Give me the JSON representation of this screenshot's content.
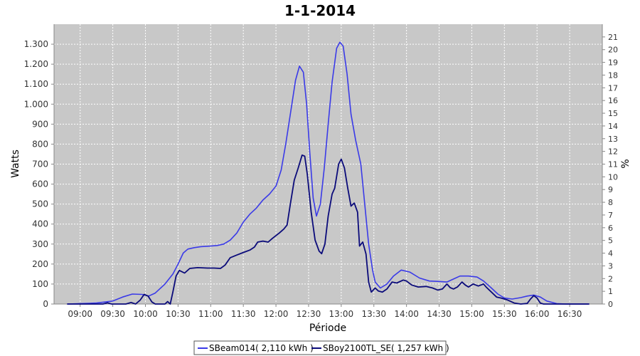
{
  "chart_data": {
    "type": "line",
    "title": "1-1-2014",
    "xlabel": "Période",
    "ylabel": "Watts",
    "y2label": "%",
    "xlim": [
      8.6,
      17.0
    ],
    "ylim": [
      0,
      1400
    ],
    "y2lim": [
      0,
      22
    ],
    "x_ticks": [
      {
        "label": "09:00",
        "value": 9.0
      },
      {
        "label": "09:30",
        "value": 9.5
      },
      {
        "label": "10:00",
        "value": 10.0
      },
      {
        "label": "10:30",
        "value": 10.5
      },
      {
        "label": "11:00",
        "value": 11.0
      },
      {
        "label": "11:30",
        "value": 11.5
      },
      {
        "label": "12:00",
        "value": 12.0
      },
      {
        "label": "12:30",
        "value": 12.5
      },
      {
        "label": "13:00",
        "value": 13.0
      },
      {
        "label": "13:30",
        "value": 13.5
      },
      {
        "label": "14:00",
        "value": 14.0
      },
      {
        "label": "14:30",
        "value": 14.5
      },
      {
        "label": "15:00",
        "value": 15.0
      },
      {
        "label": "15:30",
        "value": 15.5
      },
      {
        "label": "16:00",
        "value": 16.0
      },
      {
        "label": "16:30",
        "value": 16.5
      }
    ],
    "y_ticks": [
      {
        "label": "0",
        "value": 0
      },
      {
        "label": "100",
        "value": 100
      },
      {
        "label": "200",
        "value": 200
      },
      {
        "label": "300",
        "value": 300
      },
      {
        "label": "400",
        "value": 400
      },
      {
        "label": "500",
        "value": 500
      },
      {
        "label": "600",
        "value": 600
      },
      {
        "label": "700",
        "value": 700
      },
      {
        "label": "800",
        "value": 800
      },
      {
        "label": "900",
        "value": 900
      },
      {
        "label": "1.000",
        "value": 1000
      },
      {
        "label": "1.100",
        "value": 1100
      },
      {
        "label": "1.200",
        "value": 1200
      },
      {
        "label": "1.300",
        "value": 1300
      }
    ],
    "y2_ticks": [
      "0",
      "1",
      "2",
      "3",
      "4",
      "5",
      "6",
      "7",
      "8",
      "9",
      "10",
      "11",
      "12",
      "13",
      "14",
      "15",
      "16",
      "17",
      "18",
      "19",
      "20",
      "21"
    ],
    "grid": true,
    "legend_position": "bottom",
    "series": [
      {
        "name": "SBeam014( 2,110 kWh )",
        "color": "#3a3ae8",
        "points": [
          [
            8.8,
            0
          ],
          [
            9.0,
            2
          ],
          [
            9.25,
            5
          ],
          [
            9.5,
            15
          ],
          [
            9.65,
            35
          ],
          [
            9.8,
            50
          ],
          [
            9.95,
            48
          ],
          [
            10.05,
            40
          ],
          [
            10.15,
            55
          ],
          [
            10.3,
            100
          ],
          [
            10.42,
            150
          ],
          [
            10.5,
            200
          ],
          [
            10.58,
            255
          ],
          [
            10.65,
            275
          ],
          [
            10.75,
            282
          ],
          [
            10.85,
            287
          ],
          [
            11.0,
            290
          ],
          [
            11.1,
            293
          ],
          [
            11.2,
            300
          ],
          [
            11.3,
            320
          ],
          [
            11.4,
            355
          ],
          [
            11.5,
            410
          ],
          [
            11.6,
            450
          ],
          [
            11.7,
            480
          ],
          [
            11.8,
            520
          ],
          [
            11.9,
            550
          ],
          [
            12.0,
            590
          ],
          [
            12.08,
            670
          ],
          [
            12.15,
            800
          ],
          [
            12.22,
            950
          ],
          [
            12.3,
            1120
          ],
          [
            12.36,
            1190
          ],
          [
            12.42,
            1160
          ],
          [
            12.47,
            1000
          ],
          [
            12.52,
            750
          ],
          [
            12.57,
            530
          ],
          [
            12.62,
            440
          ],
          [
            12.68,
            500
          ],
          [
            12.74,
            680
          ],
          [
            12.8,
            900
          ],
          [
            12.86,
            1110
          ],
          [
            12.93,
            1280
          ],
          [
            12.98,
            1310
          ],
          [
            13.03,
            1290
          ],
          [
            13.09,
            1150
          ],
          [
            13.15,
            950
          ],
          [
            13.22,
            820
          ],
          [
            13.3,
            700
          ],
          [
            13.36,
            500
          ],
          [
            13.42,
            300
          ],
          [
            13.48,
            170
          ],
          [
            13.52,
            110
          ],
          [
            13.6,
            80
          ],
          [
            13.7,
            100
          ],
          [
            13.8,
            140
          ],
          [
            13.92,
            170
          ],
          [
            14.05,
            160
          ],
          [
            14.2,
            130
          ],
          [
            14.35,
            115
          ],
          [
            14.5,
            113
          ],
          [
            14.62,
            110
          ],
          [
            14.72,
            125
          ],
          [
            14.82,
            140
          ],
          [
            14.95,
            140
          ],
          [
            15.08,
            135
          ],
          [
            15.18,
            115
          ],
          [
            15.3,
            80
          ],
          [
            15.4,
            50
          ],
          [
            15.5,
            30
          ],
          [
            15.62,
            25
          ],
          [
            15.75,
            32
          ],
          [
            15.85,
            40
          ],
          [
            15.95,
            45
          ],
          [
            16.05,
            35
          ],
          [
            16.15,
            15
          ],
          [
            16.3,
            2
          ],
          [
            16.45,
            0
          ],
          [
            16.8,
            0
          ]
        ]
      },
      {
        "name": "SBoy2100TL_SE( 1,257 kWh )",
        "color": "#0a0a7a",
        "points": [
          [
            8.8,
            0
          ],
          [
            9.35,
            0
          ],
          [
            9.42,
            6
          ],
          [
            9.48,
            0
          ],
          [
            9.7,
            0
          ],
          [
            9.78,
            8
          ],
          [
            9.85,
            0
          ],
          [
            9.92,
            20
          ],
          [
            9.98,
            48
          ],
          [
            10.04,
            40
          ],
          [
            10.1,
            10
          ],
          [
            10.15,
            0
          ],
          [
            10.3,
            0
          ],
          [
            10.34,
            12
          ],
          [
            10.38,
            0
          ],
          [
            10.42,
            60
          ],
          [
            10.47,
            140
          ],
          [
            10.52,
            168
          ],
          [
            10.6,
            155
          ],
          [
            10.68,
            178
          ],
          [
            10.8,
            182
          ],
          [
            10.95,
            180
          ],
          [
            11.05,
            180
          ],
          [
            11.15,
            178
          ],
          [
            11.22,
            195
          ],
          [
            11.3,
            232
          ],
          [
            11.4,
            245
          ],
          [
            11.5,
            258
          ],
          [
            11.6,
            270
          ],
          [
            11.67,
            285
          ],
          [
            11.72,
            310
          ],
          [
            11.8,
            315
          ],
          [
            11.88,
            310
          ],
          [
            11.95,
            330
          ],
          [
            12.05,
            355
          ],
          [
            12.12,
            375
          ],
          [
            12.17,
            395
          ],
          [
            12.22,
            500
          ],
          [
            12.28,
            620
          ],
          [
            12.34,
            680
          ],
          [
            12.4,
            745
          ],
          [
            12.44,
            740
          ],
          [
            12.48,
            650
          ],
          [
            12.54,
            460
          ],
          [
            12.6,
            320
          ],
          [
            12.66,
            265
          ],
          [
            12.7,
            252
          ],
          [
            12.75,
            300
          ],
          [
            12.8,
            440
          ],
          [
            12.86,
            550
          ],
          [
            12.9,
            580
          ],
          [
            12.96,
            700
          ],
          [
            13.0,
            725
          ],
          [
            13.05,
            680
          ],
          [
            13.1,
            580
          ],
          [
            13.15,
            490
          ],
          [
            13.2,
            505
          ],
          [
            13.25,
            460
          ],
          [
            13.28,
            290
          ],
          [
            13.33,
            310
          ],
          [
            13.38,
            250
          ],
          [
            13.42,
            110
          ],
          [
            13.46,
            60
          ],
          [
            13.52,
            80
          ],
          [
            13.57,
            65
          ],
          [
            13.63,
            60
          ],
          [
            13.7,
            75
          ],
          [
            13.78,
            110
          ],
          [
            13.85,
            105
          ],
          [
            13.95,
            120
          ],
          [
            14.0,
            115
          ],
          [
            14.08,
            95
          ],
          [
            14.18,
            85
          ],
          [
            14.3,
            88
          ],
          [
            14.4,
            80
          ],
          [
            14.48,
            70
          ],
          [
            14.55,
            75
          ],
          [
            14.62,
            100
          ],
          [
            14.67,
            82
          ],
          [
            14.72,
            75
          ],
          [
            14.78,
            85
          ],
          [
            14.85,
            110
          ],
          [
            14.9,
            95
          ],
          [
            14.95,
            85
          ],
          [
            15.02,
            100
          ],
          [
            15.1,
            90
          ],
          [
            15.18,
            100
          ],
          [
            15.22,
            85
          ],
          [
            15.3,
            60
          ],
          [
            15.38,
            35
          ],
          [
            15.45,
            30
          ],
          [
            15.55,
            20
          ],
          [
            15.65,
            5
          ],
          [
            15.75,
            0
          ],
          [
            15.85,
            3
          ],
          [
            15.9,
            25
          ],
          [
            15.95,
            42
          ],
          [
            16.0,
            30
          ],
          [
            16.05,
            5
          ],
          [
            16.1,
            0
          ],
          [
            16.8,
            0
          ]
        ]
      }
    ]
  }
}
